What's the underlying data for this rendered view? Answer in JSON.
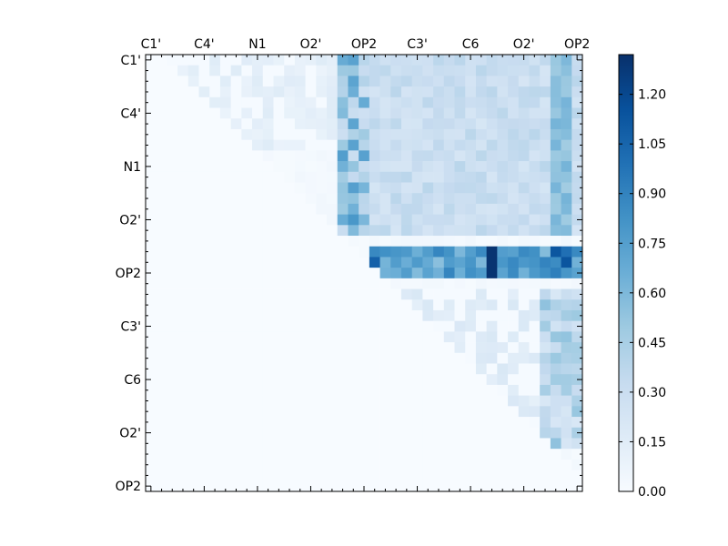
{
  "chart_data": {
    "type": "heatmap",
    "title": "",
    "xlabel": "",
    "ylabel": "",
    "grid": false,
    "colormap": "Blues",
    "colormap_stops": [
      "#f7fbff",
      "#deebf7",
      "#c6dbef",
      "#9ecae1",
      "#6baed6",
      "#4292c6",
      "#2171b5",
      "#08519c",
      "#08306b"
    ],
    "n": 41,
    "tick_labels": [
      "C1'",
      "C4'",
      "N1",
      "O2'",
      "OP2",
      "C3'",
      "C6",
      "O2'",
      "OP2"
    ],
    "tick_indices": [
      0,
      5,
      10,
      15,
      20,
      25,
      30,
      35,
      40
    ],
    "vmin": 0.0,
    "vmax": 1.32,
    "colorbar_ticks": [
      "0.00",
      "0.15",
      "0.30",
      "0.45",
      "0.60",
      "0.75",
      "0.90",
      "1.05",
      "1.20"
    ],
    "colorbar_tick_values": [
      0.0,
      0.15,
      0.3,
      0.45,
      0.6,
      0.75,
      0.9,
      1.05,
      1.2
    ],
    "high_band_rows": [
      18,
      19,
      20
    ],
    "row_peak_columns": [
      20,
      21
    ],
    "column_peak_columns": [
      38,
      39
    ],
    "row_block_row_range": [
      0,
      16
    ],
    "row_block_col_range": [
      21,
      40
    ],
    "lower_block_row_range": [
      22,
      40
    ],
    "lower_block_col_range": [
      23,
      40
    ]
  }
}
